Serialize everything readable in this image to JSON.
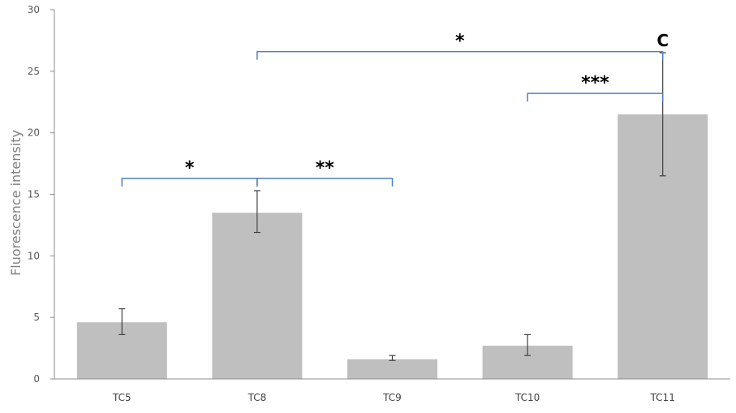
{
  "chart_data": {
    "type": "bar",
    "ylabel": "Fluorescence intensity",
    "xlabel": "",
    "title": "",
    "ylim": [
      0,
      30
    ],
    "yticks": [
      0,
      5,
      10,
      15,
      20,
      25,
      30
    ],
    "grid": false,
    "categories": [
      "TC5",
      "TC8",
      "TC9",
      "TC10",
      "TC11"
    ],
    "values": [
      4.6,
      13.5,
      1.6,
      2.7,
      21.5
    ],
    "error_low": [
      3.6,
      11.9,
      1.5,
      1.9,
      16.5
    ],
    "error_high": [
      5.7,
      15.3,
      1.9,
      3.6,
      26.5
    ],
    "bar_color": "#bfbfbf",
    "bracket_color": "#4f81bd",
    "brackets": [
      {
        "from": "TC5",
        "to": "TC8",
        "label": "*",
        "y": 16.3
      },
      {
        "from": "TC8",
        "to": "TC9",
        "label": "**",
        "y": 16.3
      },
      {
        "from": "TC10",
        "to": "TC11",
        "label": "***",
        "y": 23.2
      },
      {
        "from": "TC8",
        "to": "TC11",
        "label": "*",
        "y": 26.6
      }
    ],
    "annotations": [
      {
        "category": "TC11",
        "text": "C"
      }
    ]
  }
}
